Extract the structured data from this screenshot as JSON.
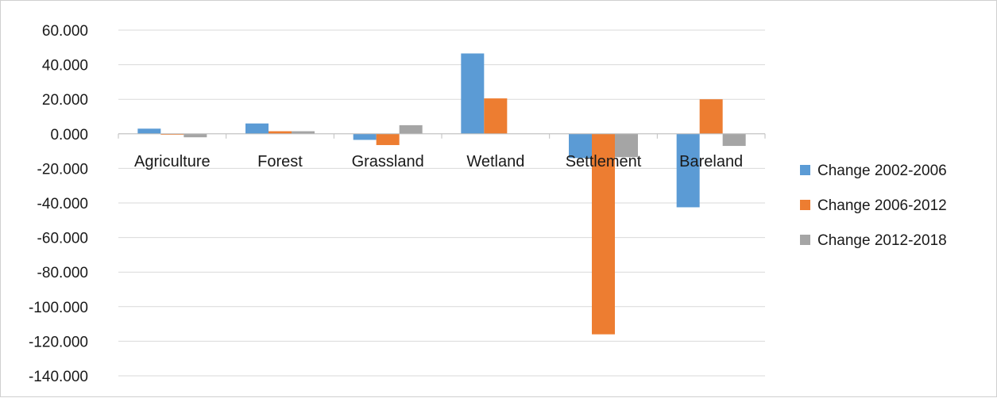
{
  "chart_data": {
    "type": "bar",
    "title": "",
    "xlabel": "",
    "ylabel": "",
    "categories": [
      "Agriculture",
      "Forest",
      "Grassland",
      "Wetland",
      "Settlement",
      "Bareland"
    ],
    "series": [
      {
        "name": "Change 2002-2006",
        "color": "#5b9bd5",
        "values": [
          3.0,
          6.0,
          -3.5,
          46.5,
          -14.0,
          -42.5
        ]
      },
      {
        "name": "Change 2006-2012",
        "color": "#ed7d31",
        "values": [
          -0.5,
          1.5,
          -6.5,
          20.5,
          -116.0,
          20.0
        ]
      },
      {
        "name": "Change 2012-2018",
        "color": "#a5a5a5",
        "values": [
          -2.0,
          1.5,
          5.0,
          0.0,
          -13.5,
          -7.0
        ]
      }
    ],
    "ylim": [
      -140,
      60
    ],
    "ytick_step": 20,
    "ytick_labels": [
      "60.000",
      "40.000",
      "20.000",
      "0.000",
      "-20.000",
      "-40.000",
      "-60.000",
      "-80.000",
      "-100.000",
      "-120.000",
      "-140.000"
    ],
    "grid": true,
    "legend_position": "right"
  }
}
